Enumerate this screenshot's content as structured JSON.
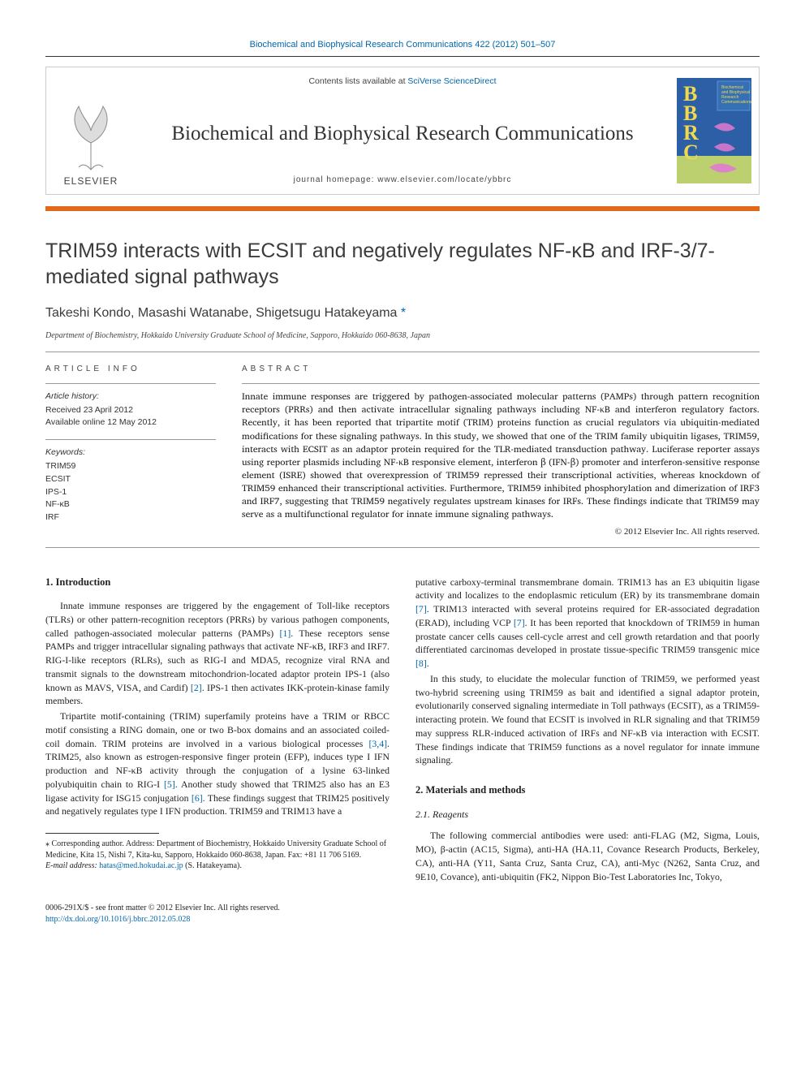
{
  "running_header": {
    "journal_link_text": "Biochemical and Biophysical Research Communications 422 (2012) 501–507"
  },
  "masthead": {
    "publisher_name": "ELSEVIER",
    "contents_prefix": "Contents lists available at ",
    "contents_link": "SciVerse ScienceDirect",
    "journal_name": "Biochemical and Biophysical Research Communications",
    "homepage_label": "journal homepage: ",
    "homepage_url": "www.elsevier.com/locate/ybbrc",
    "cover_letters": [
      "B",
      "B",
      "R",
      "C"
    ],
    "cover_title_small": "Biochemical and Biophysical Research Communications",
    "colors": {
      "orange_bar": "#e06a1a",
      "border": "#cccccc",
      "link": "#0066aa",
      "cover_bg_top": "#2c5fa5",
      "cover_letter": "#f2d84b"
    }
  },
  "title": "TRIM59 interacts with ECSIT and negatively regulates NF-κB and IRF-3/7-mediated signal pathways",
  "authors_line": "Takeshi Kondo, Masashi Watanabe, Shigetsugu Hatakeyama",
  "affiliation": "Department of Biochemistry, Hokkaido University Graduate School of Medicine, Sapporo, Hokkaido 060-8638, Japan",
  "article_info": {
    "heading": "ARTICLE INFO",
    "history_label": "Article history:",
    "received": "Received 23 April 2012",
    "online": "Available online 12 May 2012",
    "keywords_label": "Keywords:",
    "keywords": [
      "TRIM59",
      "ECSIT",
      "IPS-1",
      "NF-κB",
      "IRF"
    ]
  },
  "abstract": {
    "heading": "ABSTRACT",
    "text": "Innate immune responses are triggered by pathogen-associated molecular patterns (PAMPs) through pattern recognition receptors (PRRs) and then activate intracellular signaling pathways including NF-κB and interferon regulatory factors. Recently, it has been reported that tripartite motif (TRIM) proteins function as crucial regulators via ubiquitin-mediated modifications for these signaling pathways. In this study, we showed that one of the TRIM family ubiquitin ligases, TRIM59, interacts with ECSIT as an adaptor protein required for the TLR-mediated transduction pathway. Luciferase reporter assays using reporter plasmids including NF-κB responsive element, interferon β (IFN-β) promoter and interferon-sensitive response element (ISRE) showed that overexpression of TRIM59 repressed their transcriptional activities, whereas knockdown of TRIM59 enhanced their transcriptional activities. Furthermore, TRIM59 inhibited phosphorylation and dimerization of IRF3 and IRF7, suggesting that TRIM59 negatively regulates upstream kinases for IRFs. These findings indicate that TRIM59 may serve as a multifunctional regulator for innate immune signaling pathways.",
    "copyright": "© 2012 Elsevier Inc. All rights reserved."
  },
  "body": {
    "left": {
      "intro_heading": "1. Introduction",
      "p1": "Innate immune responses are triggered by the engagement of Toll-like receptors (TLRs) or other pattern-recognition receptors (PRRs) by various pathogen components, called pathogen-associated molecular patterns (PAMPs) [1]. These receptors sense PAMPs and trigger intracellular signaling pathways that activate NF-κB, IRF3 and IRF7. RIG-I-like receptors (RLRs), such as RIG-I and MDA5, recognize viral RNA and transmit signals to the downstream mitochondrion-located adaptor protein IPS-1 (also known as MAVS, VISA, and Cardif) [2]. IPS-1 then activates IKK-protein-kinase family members.",
      "p2": "Tripartite motif-containing (TRIM) superfamily proteins have a TRIM or RBCC motif consisting a RING domain, one or two B-box domains and an associated coiled-coil domain. TRIM proteins are involved in a various biological processes [3,4]. TRIM25, also known as estrogen-responsive finger protein (EFP), induces type I IFN production and NF-κB activity through the conjugation of a lysine 63-linked polyubiquitin chain to RIG-I [5]. Another study showed that TRIM25 also has an E3 ligase activity for ISG15 conjugation [6]. These findings suggest that TRIM25 positively and negatively regulates type I IFN production. TRIM59 and TRIM13 have a"
    },
    "right": {
      "p1": "putative carboxy-terminal transmembrane domain. TRIM13 has an E3 ubiquitin ligase activity and localizes to the endoplasmic reticulum (ER) by its transmembrane domain [7]. TRIM13 interacted with several proteins required for ER-associated degradation (ERAD), including VCP [7]. It has been reported that knockdown of TRIM59 in human prostate cancer cells causes cell-cycle arrest and cell growth retardation and that poorly differentiated carcinomas developed in prostate tissue-specific TRIM59 transgenic mice [8].",
      "p2": "In this study, to elucidate the molecular function of TRIM59, we performed yeast two-hybrid screening using TRIM59 as bait and identified a signal adaptor protein, evolutionarily conserved signaling intermediate in Toll pathways (ECSIT), as a TRIM59-interacting protein. We found that ECSIT is involved in RLR signaling and that TRIM59 may suppress RLR-induced activation of IRFs and NF-κB via interaction with ECSIT. These findings indicate that TRIM59 functions as a novel regulator for innate immune signaling.",
      "mm_heading": "2. Materials and methods",
      "mm_sub": "2.1. Reagents",
      "p3": "The following commercial antibodies were used: anti-FLAG (M2, Sigma, Louis, MO), β-actin (AC15, Sigma), anti-HA (HA.11, Covance Research Products, Berkeley, CA), anti-HA (Y11, Santa Cruz, Santa Cruz, CA), anti-Myc (N262, Santa Cruz, and 9E10, Covance), anti-ubiquitin (FK2, Nippon Bio-Test Laboratories Inc, Tokyo,"
    }
  },
  "footnote": {
    "corr_label": "⁎ Corresponding author. Address: Department of Biochemistry, Hokkaido University Graduate School of Medicine, Kita 15, Nishi 7, Kita-ku, Sapporo, Hokkaido 060-8638, Japan. Fax: +81 11 706 5169.",
    "email_label": "E-mail address: ",
    "email": "hatas@med.hokudai.ac.jp",
    "email_suffix": " (S. Hatakeyama)."
  },
  "bottom": {
    "left_line1": "0006-291X/$ - see front matter © 2012 Elsevier Inc. All rights reserved.",
    "left_line2": "http://dx.doi.org/10.1016/j.bbrc.2012.05.028"
  },
  "refs_in_text": [
    "[1]",
    "[2]",
    "[3,4]",
    "[5]",
    "[6]",
    "[7]",
    "[7]",
    "[8]"
  ]
}
